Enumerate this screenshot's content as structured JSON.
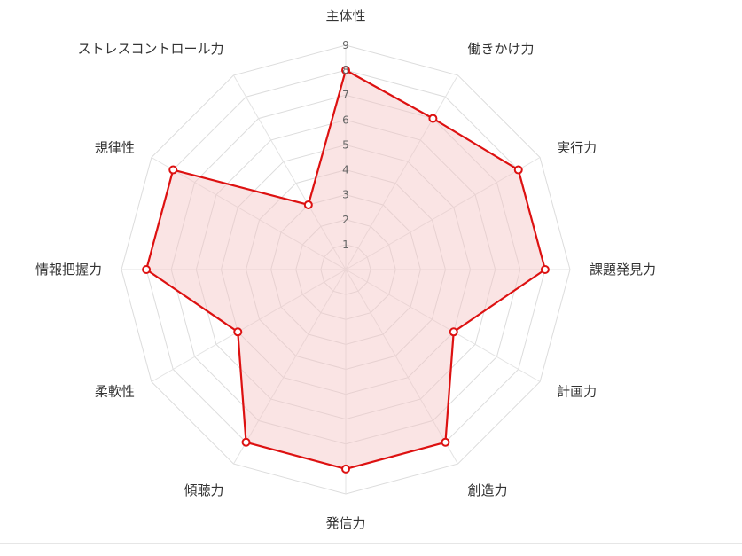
{
  "chart_data": {
    "type": "radar",
    "axes": [
      "主体性",
      "働きかけ力",
      "実行力",
      "課題発見力",
      "計画力",
      "創造力",
      "発信力",
      "傾聴力",
      "柔軟性",
      "情報把握力",
      "規律性",
      "ストレスコントロール力"
    ],
    "values": [
      8,
      7,
      8,
      8,
      5,
      8,
      8,
      8,
      5,
      8,
      8,
      3
    ],
    "rlim": [
      0,
      9
    ],
    "ticks": [
      1,
      2,
      3,
      4,
      5,
      6,
      7,
      8,
      9
    ],
    "grid": true,
    "colors": {
      "line": "#dd1111",
      "fill": "#f3c4c4",
      "grid": "#dcdcdc",
      "spoke": "#e3e3e3"
    }
  }
}
